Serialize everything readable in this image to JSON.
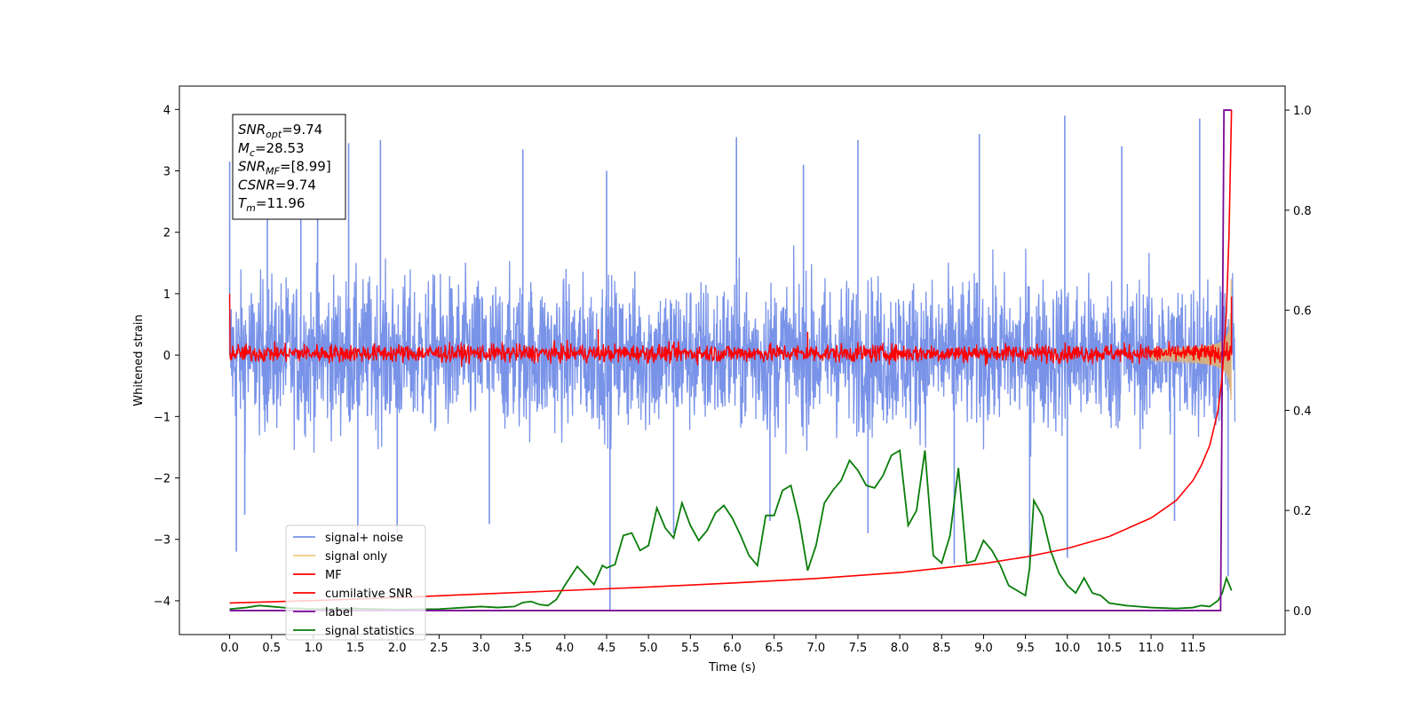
{
  "chart_data": {
    "type": "line",
    "title": "",
    "xlabel": "Time (s)",
    "ylabel": "Whitened strain",
    "xlim": [
      -0.6,
      12.6
    ],
    "ylim": [
      -4.55,
      4.38
    ],
    "y2lim": [
      -0.048,
      1.048
    ],
    "x_ticks": [
      0.0,
      0.5,
      1.0,
      1.5,
      2.0,
      2.5,
      3.0,
      3.5,
      4.0,
      4.5,
      5.0,
      5.5,
      6.0,
      6.5,
      7.0,
      7.5,
      8.0,
      8.5,
      9.0,
      9.5,
      10.0,
      10.5,
      11.0,
      11.5
    ],
    "x_tick_labels": [
      "0.0",
      "0.5",
      "1.0",
      "1.5",
      "2.0",
      "2.5",
      "3.0",
      "3.5",
      "4.0",
      "4.5",
      "5.0",
      "5.5",
      "6.0",
      "6.5",
      "7.0",
      "7.5",
      "8.0",
      "8.5",
      "9.0",
      "9.5",
      "10.0",
      "10.5",
      "11.0",
      "11.5"
    ],
    "y_ticks": [
      -4,
      -3,
      -2,
      -1,
      0,
      1,
      2,
      3,
      4
    ],
    "y_tick_labels": [
      "−4",
      "−3",
      "−2",
      "−1",
      "0",
      "1",
      "2",
      "3",
      "4"
    ],
    "y2_ticks": [
      0.0,
      0.2,
      0.4,
      0.6,
      0.8,
      1.0
    ],
    "y2_tick_labels": [
      "0.0",
      "0.2",
      "0.4",
      "0.6",
      "0.8",
      "1.0"
    ],
    "grid": false,
    "legend_position": "lower-left",
    "annotation": {
      "lines": [
        {
          "sym": "SNR",
          "sub": "opt",
          "val": "=9.74"
        },
        {
          "sym": "M",
          "sub": "c",
          "val": "=28.53"
        },
        {
          "sym": "SNR",
          "sub": "MF",
          "val": "=[8.99]"
        },
        {
          "sym": "CSNR",
          "sub": "",
          "val": "=9.74"
        },
        {
          "sym": "T",
          "sub": "m",
          "val": "=11.96"
        }
      ]
    },
    "series": [
      {
        "name": "signal+ noise",
        "color": "#7993e8",
        "axis": "left",
        "style": "random noise band, amplitude ~1.3, spikes to ±4",
        "duration": 12.0,
        "spikes": [
          [
            0.0,
            3.15
          ],
          [
            0.08,
            -3.2
          ],
          [
            0.18,
            -2.6
          ],
          [
            0.45,
            3.1
          ],
          [
            0.85,
            3.3
          ],
          [
            1.05,
            3.3
          ],
          [
            1.42,
            3.45
          ],
          [
            1.53,
            -2.95
          ],
          [
            1.8,
            3.5
          ],
          [
            2.0,
            -2.9
          ],
          [
            3.1,
            -2.75
          ],
          [
            3.5,
            3.35
          ],
          [
            4.5,
            3.0
          ],
          [
            4.54,
            -4.15
          ],
          [
            5.3,
            -2.9
          ],
          [
            6.05,
            3.55
          ],
          [
            6.45,
            -2.7
          ],
          [
            6.85,
            3.1
          ],
          [
            7.5,
            3.5
          ],
          [
            7.62,
            -2.9
          ],
          [
            8.65,
            -3.4
          ],
          [
            8.95,
            3.6
          ],
          [
            9.55,
            -3.5
          ],
          [
            9.97,
            3.9
          ],
          [
            10.0,
            -3.3
          ],
          [
            10.65,
            3.4
          ],
          [
            11.28,
            -2.7
          ],
          [
            11.58,
            3.85
          ],
          [
            11.92,
            -3.6
          ]
        ]
      },
      {
        "name": "signal only",
        "color": "#f5c87a",
        "axis": "left",
        "style": "chirp, amplitude grows sharply after ~11.3 s",
        "t_merge": 11.96
      },
      {
        "name": "MF",
        "color": "#ff0000",
        "axis": "left",
        "style": "noise band around 0, amplitude ~0.15",
        "start_value": 1.0,
        "spikes": [
          [
            4.4,
            0.42
          ],
          [
            6.9,
            0.38
          ],
          [
            11.96,
            0.95
          ]
        ]
      },
      {
        "name": "cumilative SNR",
        "color": "#ff0000",
        "axis": "right",
        "x": [
          0.0,
          1.0,
          2.0,
          3.0,
          4.0,
          5.0,
          6.0,
          7.0,
          8.0,
          9.0,
          9.5,
          10.0,
          10.5,
          11.0,
          11.3,
          11.5,
          11.6,
          11.7,
          11.8,
          11.85,
          11.9,
          11.93,
          11.96
        ],
        "values": [
          0.015,
          0.02,
          0.026,
          0.033,
          0.04,
          0.047,
          0.055,
          0.064,
          0.076,
          0.094,
          0.107,
          0.124,
          0.148,
          0.185,
          0.22,
          0.26,
          0.29,
          0.33,
          0.4,
          0.47,
          0.6,
          0.75,
          1.0
        ]
      },
      {
        "name": "label",
        "color": "#7b0a96",
        "axis": "right",
        "x": [
          0.0,
          11.83,
          11.87,
          11.96
        ],
        "values": [
          0.0,
          0.0,
          1.0,
          1.0
        ]
      },
      {
        "name": "signal statistics",
        "color": "#0a7d0a",
        "axis": "right",
        "x": [
          0.0,
          0.2,
          0.35,
          0.5,
          0.7,
          1.0,
          1.5,
          2.0,
          2.5,
          2.8,
          3.0,
          3.2,
          3.4,
          3.5,
          3.6,
          3.7,
          3.8,
          3.9,
          4.0,
          4.15,
          4.25,
          4.35,
          4.45,
          4.5,
          4.6,
          4.7,
          4.8,
          4.9,
          5.0,
          5.1,
          5.2,
          5.3,
          5.4,
          5.5,
          5.6,
          5.7,
          5.8,
          5.9,
          6.0,
          6.1,
          6.2,
          6.3,
          6.4,
          6.5,
          6.6,
          6.7,
          6.8,
          6.9,
          7.0,
          7.1,
          7.2,
          7.3,
          7.4,
          7.5,
          7.6,
          7.7,
          7.8,
          7.9,
          8.0,
          8.1,
          8.2,
          8.3,
          8.4,
          8.5,
          8.6,
          8.7,
          8.8,
          8.9,
          9.0,
          9.1,
          9.2,
          9.3,
          9.4,
          9.5,
          9.55,
          9.6,
          9.7,
          9.8,
          9.9,
          10.0,
          10.1,
          10.2,
          10.3,
          10.4,
          10.5,
          10.7,
          11.0,
          11.3,
          11.5,
          11.6,
          11.7,
          11.8,
          11.85,
          11.9,
          11.96
        ],
        "values": [
          0.003,
          0.006,
          0.01,
          0.008,
          0.005,
          0.003,
          0.004,
          0.002,
          0.003,
          0.006,
          0.008,
          0.006,
          0.008,
          0.016,
          0.018,
          0.012,
          0.01,
          0.022,
          0.05,
          0.088,
          0.07,
          0.052,
          0.09,
          0.085,
          0.092,
          0.15,
          0.155,
          0.12,
          0.13,
          0.205,
          0.165,
          0.145,
          0.215,
          0.17,
          0.14,
          0.16,
          0.195,
          0.21,
          0.185,
          0.15,
          0.11,
          0.09,
          0.19,
          0.19,
          0.24,
          0.25,
          0.18,
          0.08,
          0.13,
          0.215,
          0.24,
          0.26,
          0.3,
          0.28,
          0.25,
          0.245,
          0.27,
          0.31,
          0.32,
          0.17,
          0.2,
          0.32,
          0.11,
          0.095,
          0.15,
          0.285,
          0.095,
          0.1,
          0.14,
          0.12,
          0.09,
          0.05,
          0.04,
          0.03,
          0.085,
          0.22,
          0.19,
          0.12,
          0.075,
          0.05,
          0.035,
          0.065,
          0.035,
          0.03,
          0.015,
          0.01,
          0.006,
          0.004,
          0.006,
          0.01,
          0.008,
          0.02,
          0.035,
          0.065,
          0.04
        ]
      }
    ]
  }
}
